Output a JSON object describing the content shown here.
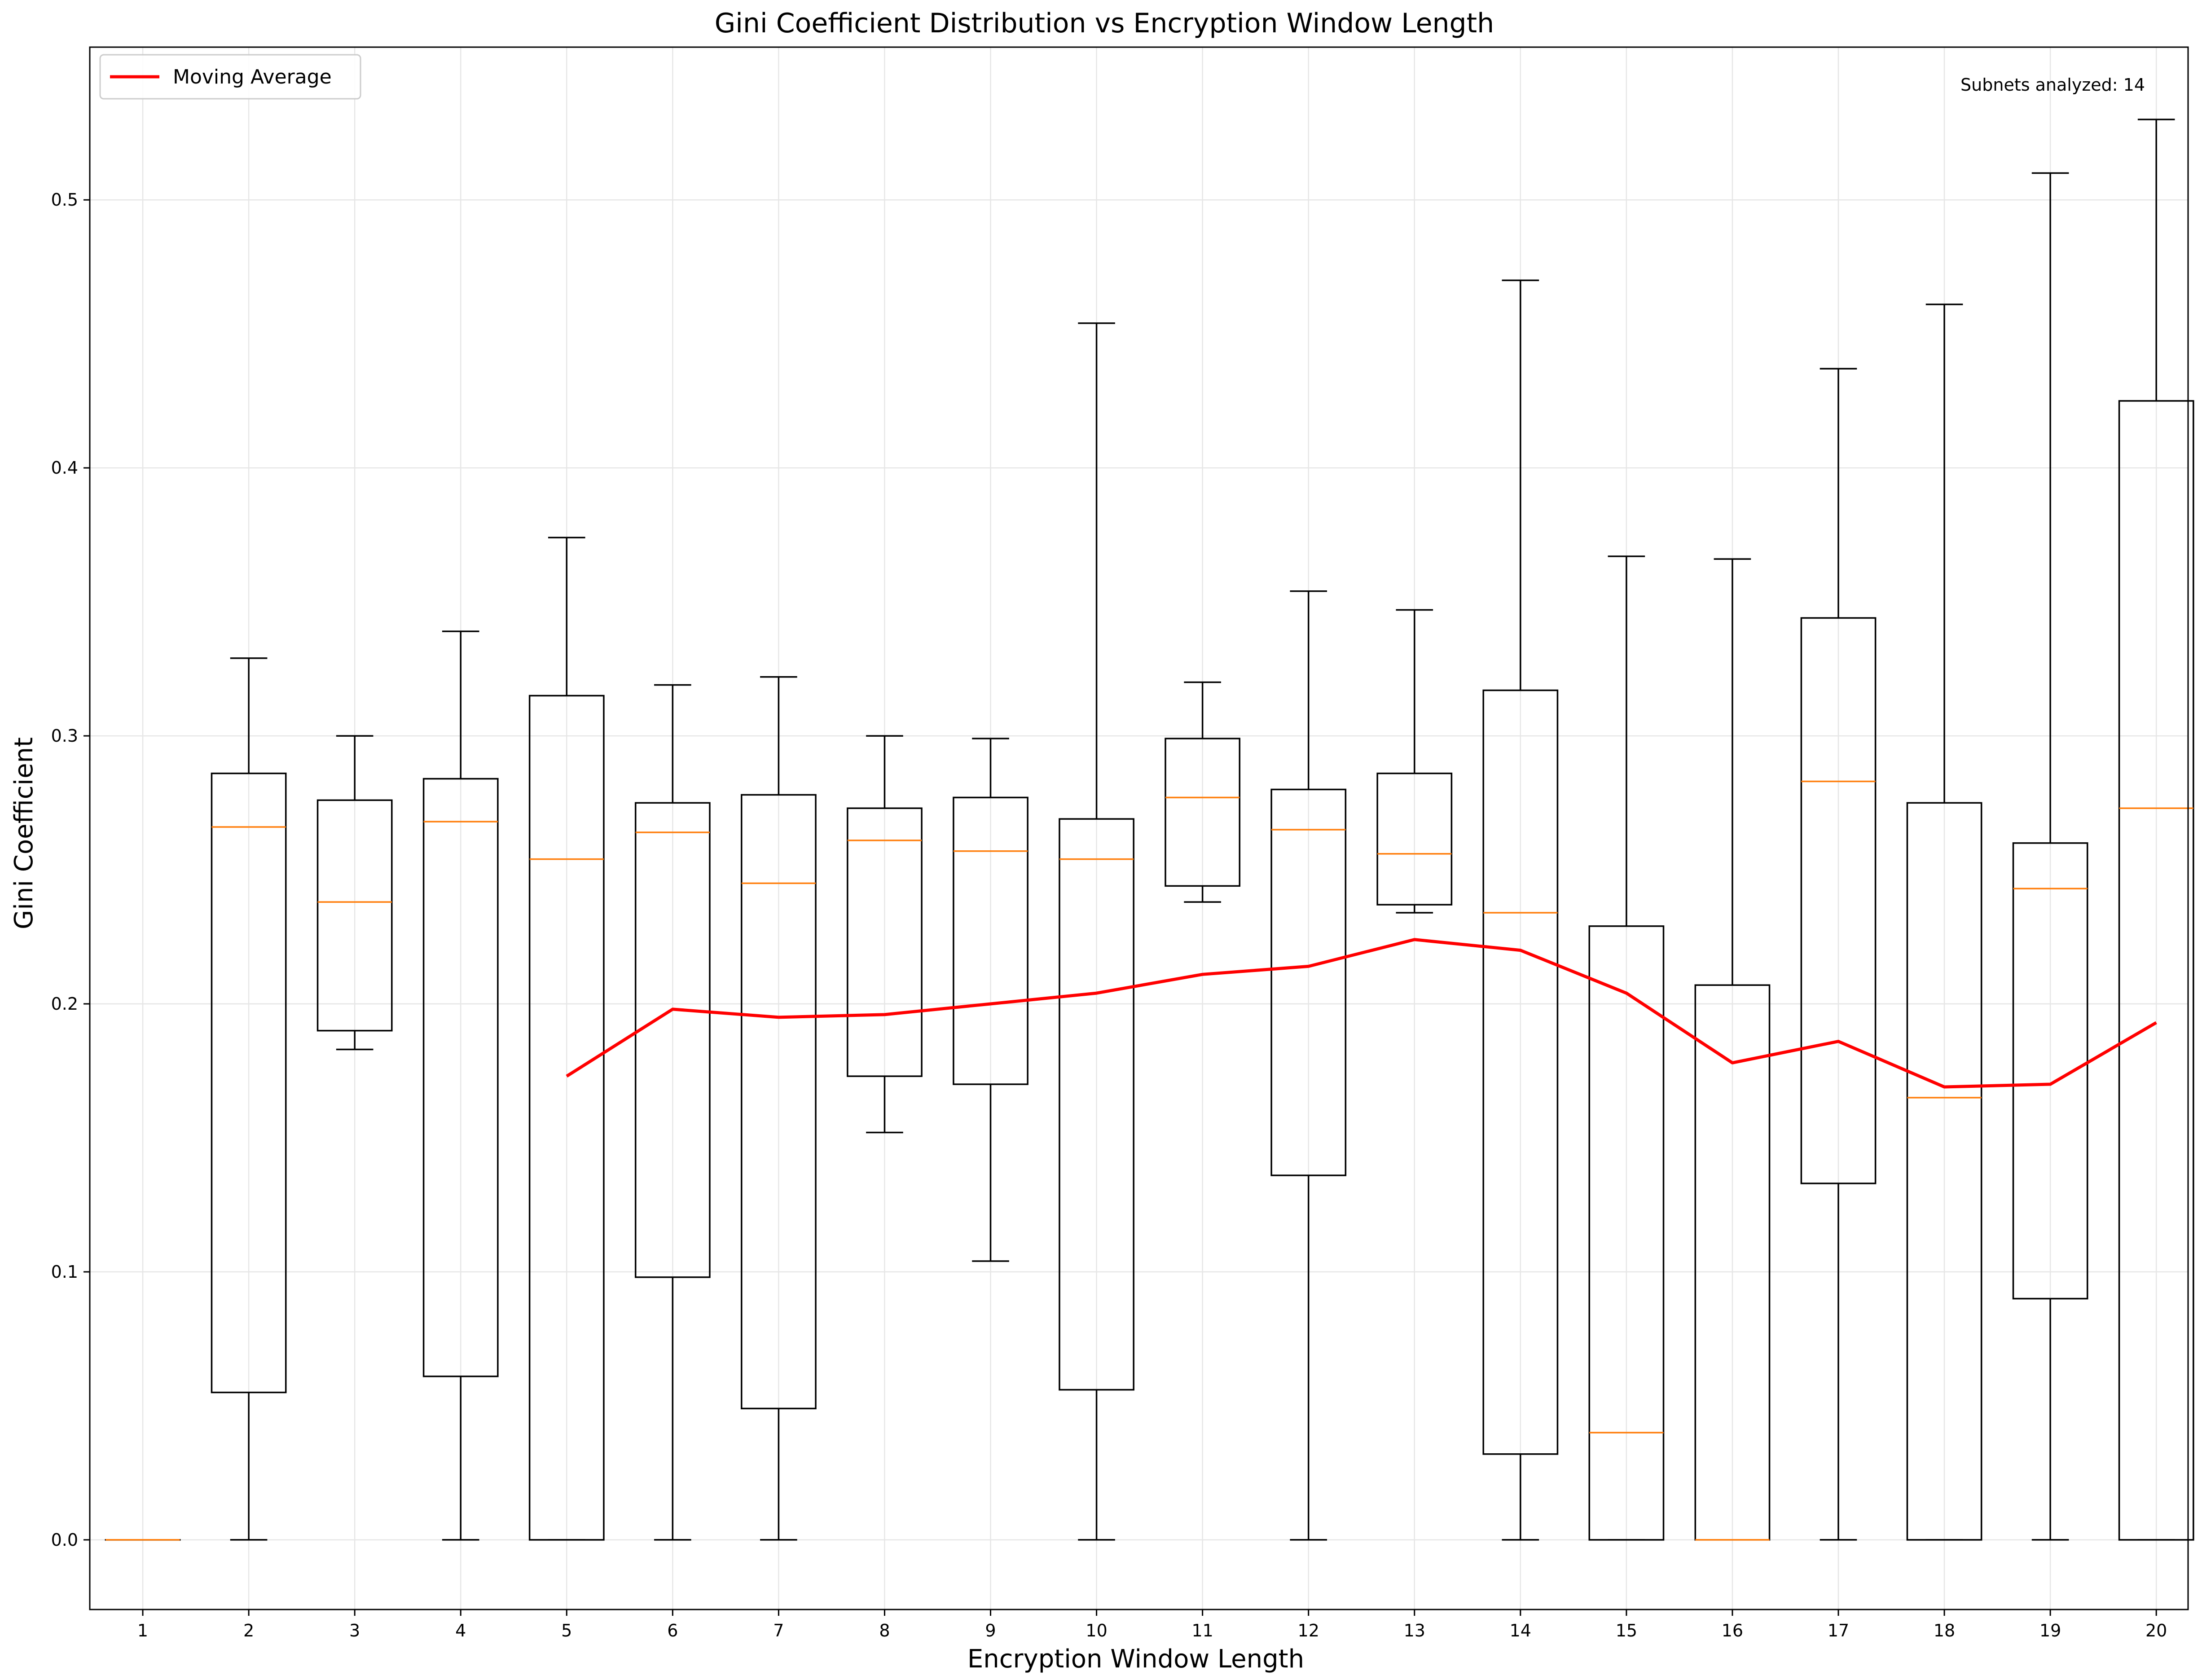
{
  "chart_data": {
    "type": "boxplot",
    "title": "Gini Coefficient Distribution vs Encryption Window Length",
    "xlabel": "Encryption Window Length",
    "ylabel": "Gini Coefficient",
    "ylim": [
      -0.026,
      0.557
    ],
    "xlim": [
      0,
      20
    ],
    "grid": true,
    "legend_position": "upper-left",
    "annotation": "Subnets analyzed: 14",
    "categories": [
      "1",
      "2",
      "3",
      "4",
      "5",
      "6",
      "7",
      "8",
      "9",
      "10",
      "11",
      "12",
      "13",
      "14",
      "15",
      "16",
      "17",
      "18",
      "19",
      "20"
    ],
    "y_ticks": [
      "0.0",
      "0.1",
      "0.2",
      "0.3",
      "0.4",
      "0.5"
    ],
    "boxes": [
      {
        "x": 1,
        "whislo": 0.0,
        "q1": 0.0,
        "med": 0.0,
        "q3": 0.0,
        "whishi": 0.0
      },
      {
        "x": 2,
        "whislo": 0.0,
        "q1": 0.055,
        "med": 0.266,
        "q3": 0.286,
        "whishi": 0.329
      },
      {
        "x": 3,
        "whislo": 0.183,
        "q1": 0.19,
        "med": 0.238,
        "q3": 0.276,
        "whishi": 0.3
      },
      {
        "x": 4,
        "whislo": 0.0,
        "q1": 0.061,
        "med": 0.268,
        "q3": 0.284,
        "whishi": 0.339
      },
      {
        "x": 5,
        "whislo": 0.0,
        "q1": 0.0,
        "med": 0.254,
        "q3": 0.315,
        "whishi": 0.374
      },
      {
        "x": 6,
        "whislo": 0.0,
        "q1": 0.098,
        "med": 0.264,
        "q3": 0.275,
        "whishi": 0.319
      },
      {
        "x": 7,
        "whislo": 0.0,
        "q1": 0.049,
        "med": 0.245,
        "q3": 0.278,
        "whishi": 0.322
      },
      {
        "x": 8,
        "whislo": 0.152,
        "q1": 0.173,
        "med": 0.261,
        "q3": 0.273,
        "whishi": 0.3
      },
      {
        "x": 9,
        "whislo": 0.104,
        "q1": 0.17,
        "med": 0.257,
        "q3": 0.277,
        "whishi": 0.299
      },
      {
        "x": 10,
        "whislo": 0.0,
        "q1": 0.056,
        "med": 0.254,
        "q3": 0.269,
        "whishi": 0.454
      },
      {
        "x": 11,
        "whislo": 0.238,
        "q1": 0.244,
        "med": 0.277,
        "q3": 0.299,
        "whishi": 0.32
      },
      {
        "x": 12,
        "whislo": 0.0,
        "q1": 0.136,
        "med": 0.265,
        "q3": 0.28,
        "whishi": 0.354
      },
      {
        "x": 13,
        "whislo": 0.234,
        "q1": 0.237,
        "med": 0.256,
        "q3": 0.286,
        "whishi": 0.347
      },
      {
        "x": 14,
        "whislo": 0.0,
        "q1": 0.032,
        "med": 0.234,
        "q3": 0.317,
        "whishi": 0.47
      },
      {
        "x": 15,
        "whislo": 0.0,
        "q1": 0.0,
        "med": 0.04,
        "q3": 0.229,
        "whishi": 0.367
      },
      {
        "x": 16,
        "whislo": 0.0,
        "q1": 0.0,
        "med": 0.0,
        "q3": 0.207,
        "whishi": 0.366
      },
      {
        "x": 17,
        "whislo": 0.0,
        "q1": 0.133,
        "med": 0.283,
        "q3": 0.344,
        "whishi": 0.437
      },
      {
        "x": 18,
        "whislo": 0.0,
        "q1": 0.0,
        "med": 0.165,
        "q3": 0.275,
        "whishi": 0.461
      },
      {
        "x": 19,
        "whislo": 0.0,
        "q1": 0.09,
        "med": 0.243,
        "q3": 0.26,
        "whishi": 0.51
      },
      {
        "x": 20,
        "whislo": 0.0,
        "q1": 0.0,
        "med": 0.273,
        "q3": 0.425,
        "whishi": 0.53
      }
    ],
    "series": [
      {
        "name": "Moving Average",
        "color": "#ff0000",
        "x": [
          5,
          6,
          7,
          8,
          9,
          10,
          11,
          12,
          13,
          14,
          15,
          16,
          17,
          18,
          19,
          20
        ],
        "values": [
          0.173,
          0.198,
          0.195,
          0.196,
          0.2,
          0.204,
          0.211,
          0.214,
          0.224,
          0.22,
          0.204,
          0.178,
          0.186,
          0.169,
          0.17,
          0.193
        ]
      }
    ],
    "colors": {
      "box": "#000000",
      "median": "#ff7f0e",
      "grid": "#e6e6e6",
      "moving_average": "#ff0000"
    }
  }
}
